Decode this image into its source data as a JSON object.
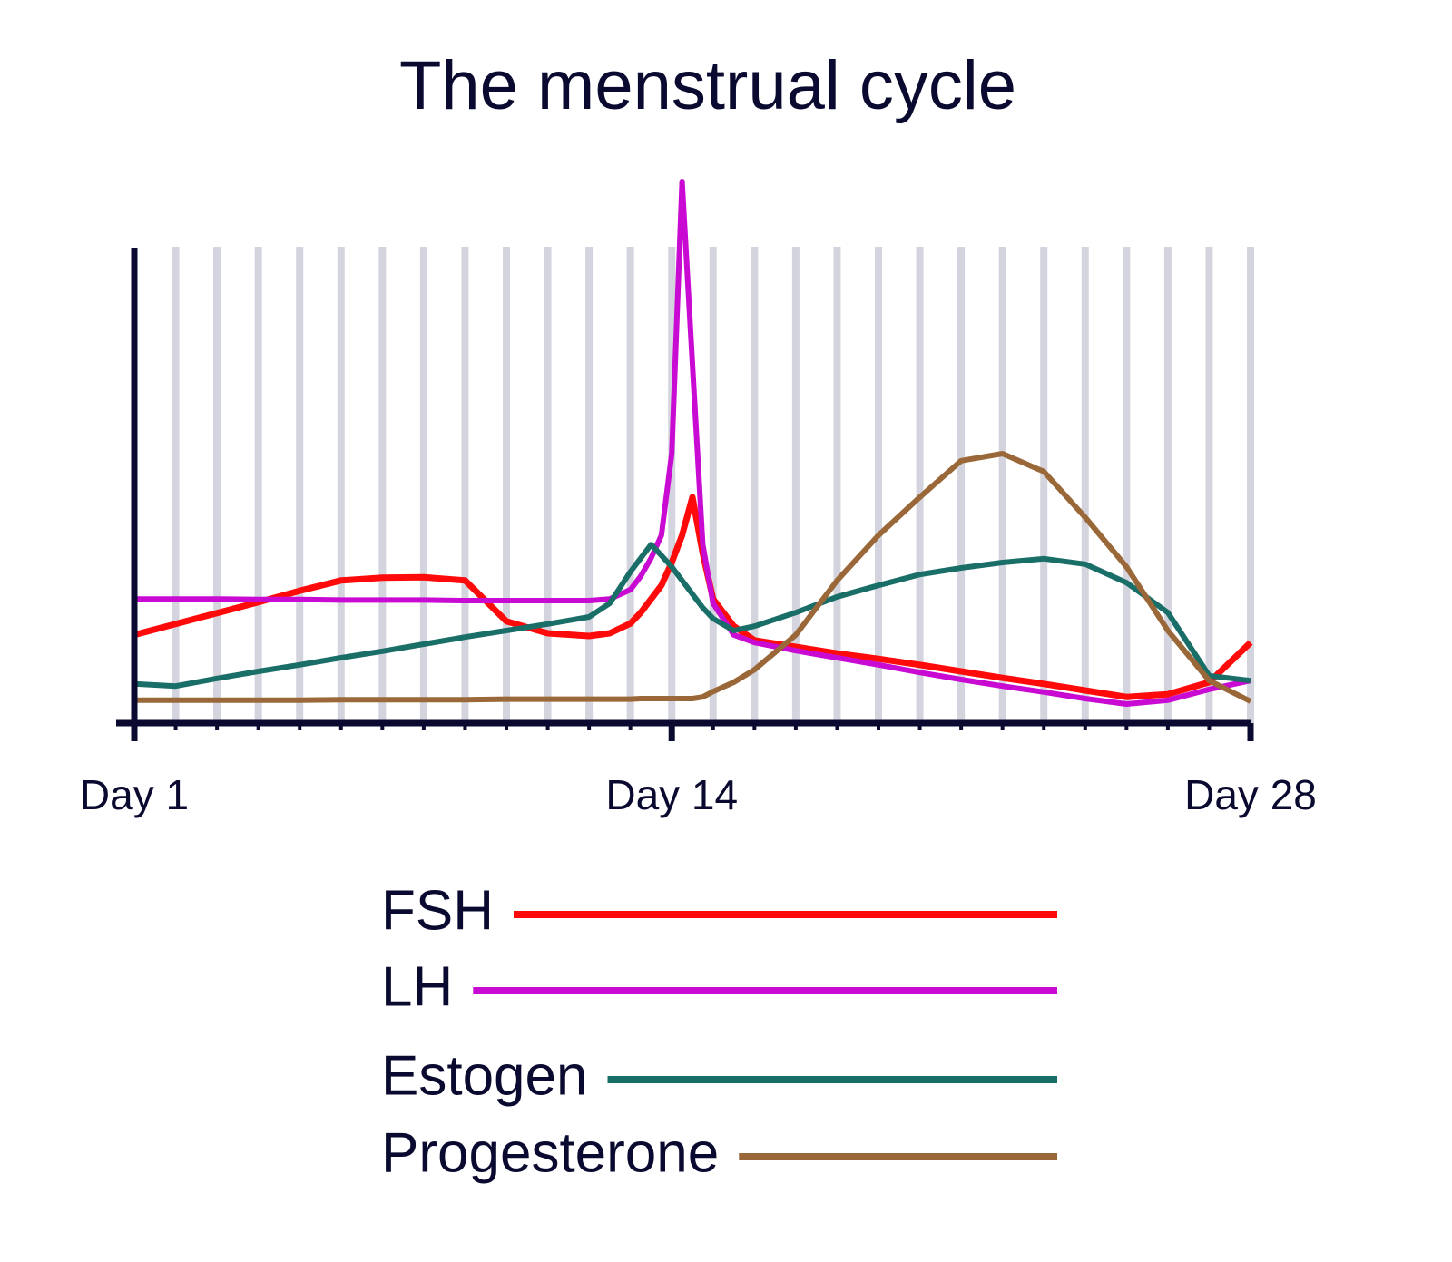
{
  "chart_data": {
    "type": "line",
    "title": "The menstrual cycle",
    "x": [
      1,
      2,
      3,
      4,
      5,
      6,
      7,
      8,
      9,
      10,
      11,
      12,
      12.5,
      13,
      13.25,
      13.5,
      13.75,
      14,
      14.25,
      14.5,
      14.75,
      15,
      15.5,
      16,
      17,
      18,
      19,
      20,
      21,
      22,
      23,
      24,
      25,
      26,
      27,
      28
    ],
    "series": [
      {
        "name": "FSH",
        "color": "#ff0a0a",
        "values": [
          16.2,
          18.2,
          20.2,
          22.2,
          24.3,
          26.2,
          26.7,
          26.8,
          26.2,
          18.7,
          16.5,
          16,
          16.5,
          18.3,
          20.3,
          22.8,
          25.3,
          29.5,
          34.5,
          41.5,
          31.2,
          22.8,
          17.8,
          15.2,
          14,
          12.8,
          11.8,
          10.7,
          9.5,
          8.3,
          7.2,
          6,
          4.8,
          5.3,
          7.5,
          14.8
        ]
      },
      {
        "name": "LH",
        "color": "#c80ad2",
        "values": [
          22.8,
          22.8,
          22.8,
          22.7,
          22.7,
          22.6,
          22.6,
          22.6,
          22.5,
          22.5,
          22.5,
          22.5,
          22.8,
          24.5,
          27,
          30.3,
          34.5,
          49.5,
          99.5,
          66,
          32.8,
          22,
          16.2,
          14.8,
          13.3,
          12,
          10.7,
          9.3,
          8,
          6.8,
          5.7,
          4.5,
          3.5,
          4.2,
          6.2,
          7.8
        ]
      },
      {
        "name": "Estogen",
        "color": "#1a6e68",
        "values": [
          7.2,
          6.8,
          8.2,
          9.5,
          10.7,
          12,
          13.2,
          14.5,
          15.8,
          17,
          18.2,
          19.5,
          22,
          27.8,
          30.3,
          32.8,
          30.8,
          28.7,
          26.2,
          23.7,
          21.2,
          19.2,
          17,
          17.8,
          20.3,
          23.2,
          25.3,
          27.3,
          28.5,
          29.5,
          30.2,
          29.2,
          25.8,
          20.3,
          8.7,
          7.8
        ]
      },
      {
        "name": "Progesterone",
        "color": "#9a6838",
        "values": [
          4.2,
          4.2,
          4.2,
          4.2,
          4.2,
          4.3,
          4.3,
          4.3,
          4.3,
          4.4,
          4.4,
          4.4,
          4.4,
          4.4,
          4.5,
          4.5,
          4.5,
          4.5,
          4.5,
          4.5,
          4.8,
          5.8,
          7.5,
          9.8,
          16.2,
          26.2,
          34.5,
          41.5,
          48.2,
          49.5,
          46.2,
          37.8,
          28.7,
          17,
          7.8,
          4
        ]
      }
    ],
    "xlim": [
      1,
      28
    ],
    "ylim": [
      0,
      100
    ],
    "xticks": [
      {
        "value": 1,
        "label": "Day 1"
      },
      {
        "value": 14,
        "label": "Day 14"
      },
      {
        "value": 28,
        "label": "Day 28"
      }
    ],
    "grid": true
  }
}
